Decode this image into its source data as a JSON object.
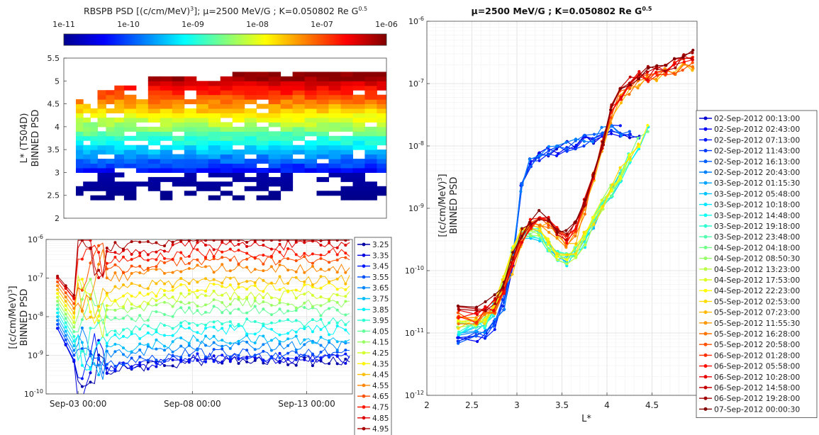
{
  "colorbar": {
    "title": "RBSPB PSD [(c/cm/MeV)",
    "title_sup": "3",
    "title_rest": "]; μ=2500 MeV/G ; K=0.050802 Re G",
    "title_sup2": "0.5",
    "ticks": [
      "1e-11",
      "1e-10",
      "1e-09",
      "1e-08",
      "1e-07",
      "1e-06"
    ]
  },
  "chart_data": [
    {
      "type": "heatmap",
      "ylabel_line1": "L* (TS04D)",
      "ylabel_line2": "BINNED PSD",
      "ylim": [
        2,
        5.5
      ],
      "yticks": [
        "2",
        "2.5",
        "3",
        "3.5",
        "4",
        "4.5",
        "5",
        "5.5"
      ],
      "color_scale": "log",
      "color_range": [
        1e-11,
        1e-06
      ],
      "rows_L": [
        2.45,
        2.55,
        2.65,
        2.75,
        2.85,
        2.95,
        3.05,
        3.15,
        3.25,
        3.35,
        3.45,
        3.55,
        3.65,
        3.75,
        3.85,
        3.95,
        4.05,
        4.15,
        4.25,
        4.35,
        4.45,
        4.55,
        4.65,
        4.75,
        4.85,
        4.95,
        5.05,
        5.15
      ],
      "columns": [
        {
          "day": 2.1,
          "lmax": 4.6
        },
        {
          "day": 2.4,
          "lmax": 4.45
        },
        {
          "day": 2.7,
          "lmax": 4.5
        },
        {
          "day": 3.0,
          "lmax": 4.75
        },
        {
          "day": 3.35,
          "lmax": 4.8
        },
        {
          "day": 3.7,
          "lmax": 4.88
        },
        {
          "day": 4.1,
          "lmax": 4.9
        },
        {
          "day": 4.6,
          "lmax": 4.55
        },
        {
          "day": 5.1,
          "lmax": 5.05
        },
        {
          "day": 5.6,
          "lmax": 5.05
        },
        {
          "day": 6.1,
          "lmax": 5.05
        },
        {
          "day": 6.6,
          "lmax": 5.1
        },
        {
          "day": 7.1,
          "lmax": 5.0
        },
        {
          "day": 7.6,
          "lmax": 5.0
        },
        {
          "day": 8.1,
          "lmax": 5.05
        },
        {
          "day": 8.6,
          "lmax": 5.15
        },
        {
          "day": 9.1,
          "lmax": 5.15
        },
        {
          "day": 9.6,
          "lmax": 5.15
        },
        {
          "day": 10.1,
          "lmax": 5.15
        },
        {
          "day": 10.6,
          "lmax": 5.1
        },
        {
          "day": 11.1,
          "lmax": 5.2
        },
        {
          "day": 11.6,
          "lmax": 5.2
        },
        {
          "day": 12.1,
          "lmax": 5.2
        },
        {
          "day": 12.6,
          "lmax": 5.2
        },
        {
          "day": 13.1,
          "lmax": 5.25
        },
        {
          "day": 13.6,
          "lmax": 5.2
        },
        {
          "day": 14.1,
          "lmax": 5.2
        },
        {
          "day": 14.6,
          "lmax": 5.15
        }
      ]
    },
    {
      "type": "line",
      "ylabel_line1": "[(c/cm/MeV)",
      "ylabel_sup": "3",
      "ylabel_close": "]",
      "ylabel_line2": "BINNED PSD",
      "yscale": "log",
      "ylim": [
        1e-10,
        1e-06
      ],
      "yticks": [
        {
          "base": "10",
          "exp": "-10",
          "v": -10
        },
        {
          "base": "10",
          "exp": "-9",
          "v": -9
        },
        {
          "base": "10",
          "exp": "-8",
          "v": -8
        },
        {
          "base": "10",
          "exp": "-7",
          "v": -7
        },
        {
          "base": "10",
          "exp": "-6",
          "v": -6
        }
      ],
      "xticks": [
        {
          "label": "Sep-03 00:00",
          "day": 3
        },
        {
          "label": "Sep-08 00:00",
          "day": 8
        },
        {
          "label": "Sep-13 00:00",
          "day": 13
        }
      ],
      "xlim_days": [
        1.6,
        15.0
      ],
      "legend": [
        "3.25",
        "3.35",
        "3.45",
        "3.55",
        "3.65",
        "3.75",
        "3.85",
        "3.95",
        "4.05",
        "4.15",
        "4.25",
        "4.35",
        "4.45",
        "4.55",
        "4.65",
        "4.75",
        "4.85",
        "4.95"
      ],
      "series_log_level": {
        "early": [
          -8.3,
          -8.3,
          -8.3,
          -8.2,
          -8.1,
          -8.0,
          -7.9,
          -7.8,
          -7.7,
          -7.6,
          -7.5,
          -7.4,
          -7.3,
          -7.2,
          -7.1,
          -7.0,
          -7.0,
          -6.95
        ],
        "late": [
          -9.4,
          -9.35,
          -9.3,
          -9.2,
          -9.0,
          -8.85,
          -8.6,
          -8.4,
          -8.1,
          -7.9,
          -7.7,
          -7.5,
          -7.3,
          -7.0,
          -6.8,
          -6.6,
          -6.4,
          -6.2
        ]
      }
    },
    {
      "type": "line",
      "title": "μ=2500 MeV/G ; K=0.050802 Re G",
      "title_sup": "0.5",
      "xlabel": "L*",
      "ylabel_line1": "[(c/cm/MeV)",
      "ylabel_sup": "3",
      "ylabel_close": "]",
      "ylabel_line2": "BINNED PSD",
      "xlim": [
        2,
        5
      ],
      "xticks": [
        "2",
        "2.5",
        "3",
        "3.5",
        "4",
        "4.5"
      ],
      "yscale": "log",
      "ylim": [
        1e-12,
        1e-06
      ],
      "yticks": [
        {
          "base": "10",
          "exp": "-12",
          "v": -12
        },
        {
          "base": "10",
          "exp": "-11",
          "v": -11
        },
        {
          "base": "10",
          "exp": "-10",
          "v": -10
        },
        {
          "base": "10",
          "exp": "-9",
          "v": -9
        },
        {
          "base": "10",
          "exp": "-8",
          "v": -8
        },
        {
          "base": "10",
          "exp": "-7",
          "v": -7
        },
        {
          "base": "10",
          "exp": "-6",
          "v": -6
        }
      ],
      "L_grid": [
        2.35,
        2.55,
        2.65,
        2.75,
        2.85,
        2.95,
        3.05,
        3.15,
        3.25,
        3.35,
        3.45,
        3.55,
        3.65,
        3.75,
        3.85,
        3.95,
        4.05,
        4.15,
        4.25,
        4.35,
        4.45,
        4.55,
        4.65,
        4.75,
        4.85,
        4.95
      ],
      "legend": [
        "02-Sep-2012 00:13:00",
        "02-Sep-2012 02:43:00",
        "02-Sep-2012 07:13:00",
        "02-Sep-2012 11:43:00",
        "02-Sep-2012 16:13:00",
        "02-Sep-2012 20:43:00",
        "03-Sep-2012 01:15:30",
        "03-Sep-2012 05:48:00",
        "03-Sep-2012 10:18:00",
        "03-Sep-2012 14:48:00",
        "03-Sep-2012 19:18:00",
        "03-Sep-2012 23:48:00",
        "04-Sep-2012 04:18:00",
        "04-Sep-2012 08:50:30",
        "04-Sep-2012 13:23:00",
        "04-Sep-2012 17:53:00",
        "04-Sep-2012 22:23:00",
        "05-Sep-2012 02:53:00",
        "05-Sep-2012 07:23:00",
        "05-Sep-2012 11:55:30",
        "05-Sep-2012 16:28:00",
        "05-Sep-2012 20:58:00",
        "06-Sep-2012 01:28:00",
        "06-Sep-2012 05:58:00",
        "06-Sep-2012 10:28:00",
        "06-Sep-2012 14:58:00",
        "06-Sep-2012 19:28:00",
        "07-Sep-2012 00:00:30"
      ],
      "profiles": {
        "early": [
          -11.05,
          -11.0,
          -10.95,
          -10.8,
          -10.5,
          -9.8,
          -8.6,
          -8.2,
          -8.1,
          -8.05,
          -8.0,
          -7.95,
          -7.9,
          -7.85,
          -7.8,
          -7.75,
          -7.7,
          -7.7,
          -7.75,
          -7.8,
          -7.9
        ],
        "middle": [
          -10.9,
          -10.85,
          -10.8,
          -10.6,
          -10.2,
          -9.7,
          -9.4,
          -9.35,
          -9.4,
          -9.6,
          -9.75,
          -9.8,
          -9.7,
          -9.5,
          -9.2,
          -8.95,
          -8.7,
          -8.45,
          -8.2,
          -7.95,
          -7.75
        ],
        "late": [
          -10.85,
          -10.85,
          -10.8,
          -10.7,
          -10.4,
          -10.0,
          -9.6,
          -9.35,
          -9.3,
          -9.35,
          -9.5,
          -9.6,
          -9.5,
          -9.1,
          -8.6,
          -8.1,
          -7.6,
          -7.3,
          -7.15,
          -7.05,
          -7.0,
          -6.95,
          -6.9,
          -6.85,
          -6.8,
          -6.75
        ]
      }
    }
  ]
}
